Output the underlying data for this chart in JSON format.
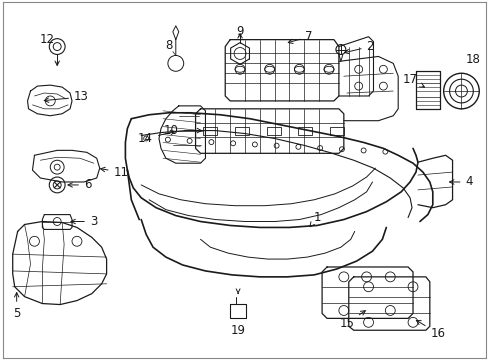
{
  "bg_color": "#ffffff",
  "line_color": "#1a1a1a",
  "fig_width": 4.89,
  "fig_height": 3.6,
  "dpi": 100,
  "border_color": "#aaaaaa"
}
